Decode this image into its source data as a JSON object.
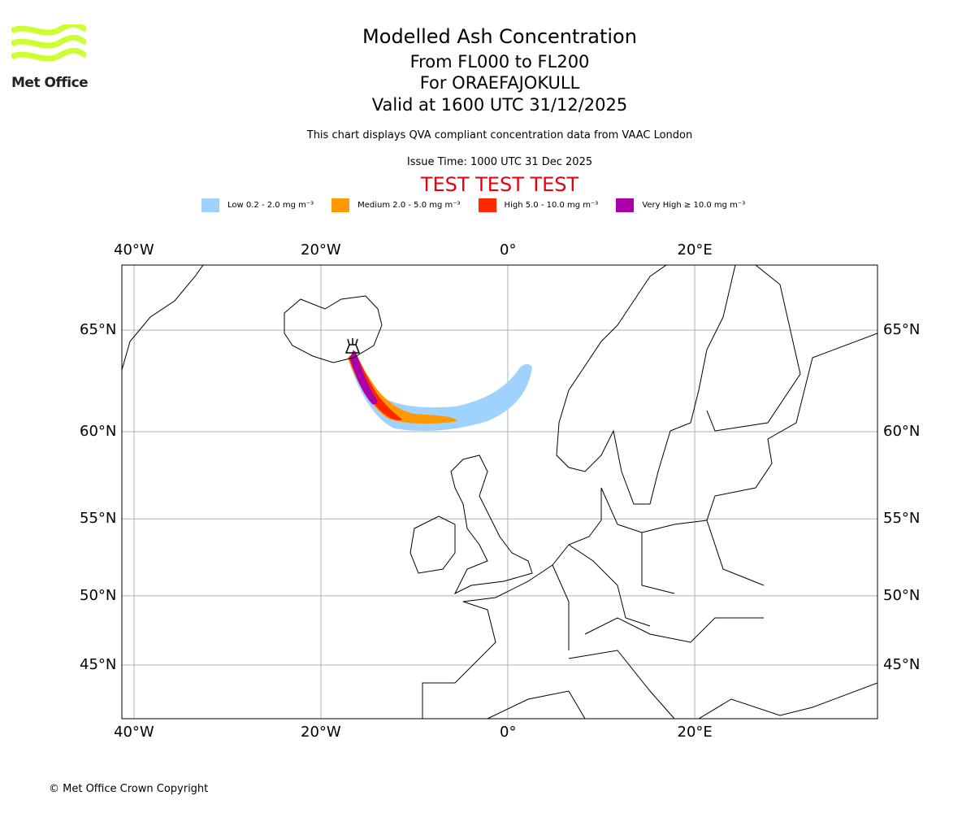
{
  "header": {
    "title": "Modelled Ash Concentration",
    "levels": "From FL000 to FL200",
    "volcano": "For ORAEFAJOKULL",
    "valid": "Valid at 1600 UTC 31/12/2025",
    "description": "This chart displays QVA compliant concentration data from VAAC London",
    "issue_time": "Issue Time: 1000 UTC 31 Dec 2025",
    "test_banner": "TEST TEST TEST"
  },
  "logo": {
    "text": "Met Office",
    "color": "#ccff33"
  },
  "legend": [
    {
      "label": "Low 0.2 - 2.0 mg m⁻³",
      "color": "#a0d2ff"
    },
    {
      "label": "Medium 2.0 - 5.0 mg m⁻³",
      "color": "#ff9900"
    },
    {
      "label": "High 5.0 - 10.0 mg m⁻³",
      "color": "#ff2800"
    },
    {
      "label": "Very High ≥ 10.0 mg m⁻³",
      "color": "#aa00aa"
    }
  ],
  "chart_data": {
    "type": "map",
    "projection": "mercator",
    "lon_ticks": [
      {
        "value": -40,
        "label": "40°W"
      },
      {
        "value": -20,
        "label": "20°W"
      },
      {
        "value": 0,
        "label": "0°"
      },
      {
        "value": 20,
        "label": "20°E"
      }
    ],
    "lat_ticks": [
      {
        "value": 65,
        "label": "65°N"
      },
      {
        "value": 60,
        "label": "60°N"
      },
      {
        "value": 55,
        "label": "55°N"
      },
      {
        "value": 50,
        "label": "50°N"
      },
      {
        "value": 45,
        "label": "45°N"
      }
    ],
    "grid": true,
    "volcano": {
      "name": "ORAEFAJOKULL",
      "lat": 64.0,
      "lon": -16.6
    }
  },
  "footer": {
    "copyright": "© Met Office Crown Copyright"
  }
}
